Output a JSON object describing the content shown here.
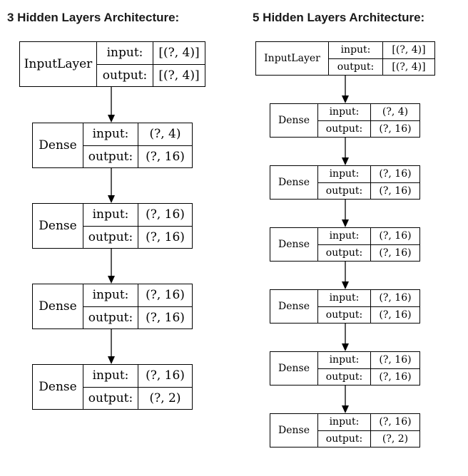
{
  "left": {
    "title": "3 Hidden Layers Architecture:",
    "layers": [
      {
        "name": "InputLayer",
        "input": "[(?, 4)]",
        "output": "[(?, 4)]"
      },
      {
        "name": "Dense",
        "input": "(?, 4)",
        "output": "(?, 16)"
      },
      {
        "name": "Dense",
        "input": "(?, 16)",
        "output": "(?, 16)"
      },
      {
        "name": "Dense",
        "input": "(?, 16)",
        "output": "(?, 16)"
      },
      {
        "name": "Dense",
        "input": "(?, 16)",
        "output": "(?, 2)"
      }
    ]
  },
  "right": {
    "title": "5 Hidden Layers Architecture:",
    "layers": [
      {
        "name": "InputLayer",
        "input": "[(?, 4)]",
        "output": "[(?, 4)]"
      },
      {
        "name": "Dense",
        "input": "(?, 4)",
        "output": "(?, 16)"
      },
      {
        "name": "Dense",
        "input": "(?, 16)",
        "output": "(?, 16)"
      },
      {
        "name": "Dense",
        "input": "(?, 16)",
        "output": "(?, 16)"
      },
      {
        "name": "Dense",
        "input": "(?, 16)",
        "output": "(?, 16)"
      },
      {
        "name": "Dense",
        "input": "(?, 16)",
        "output": "(?, 16)"
      },
      {
        "name": "Dense",
        "input": "(?, 16)",
        "output": "(?, 2)"
      }
    ]
  },
  "labels": {
    "input": "input:",
    "output": "output:"
  }
}
